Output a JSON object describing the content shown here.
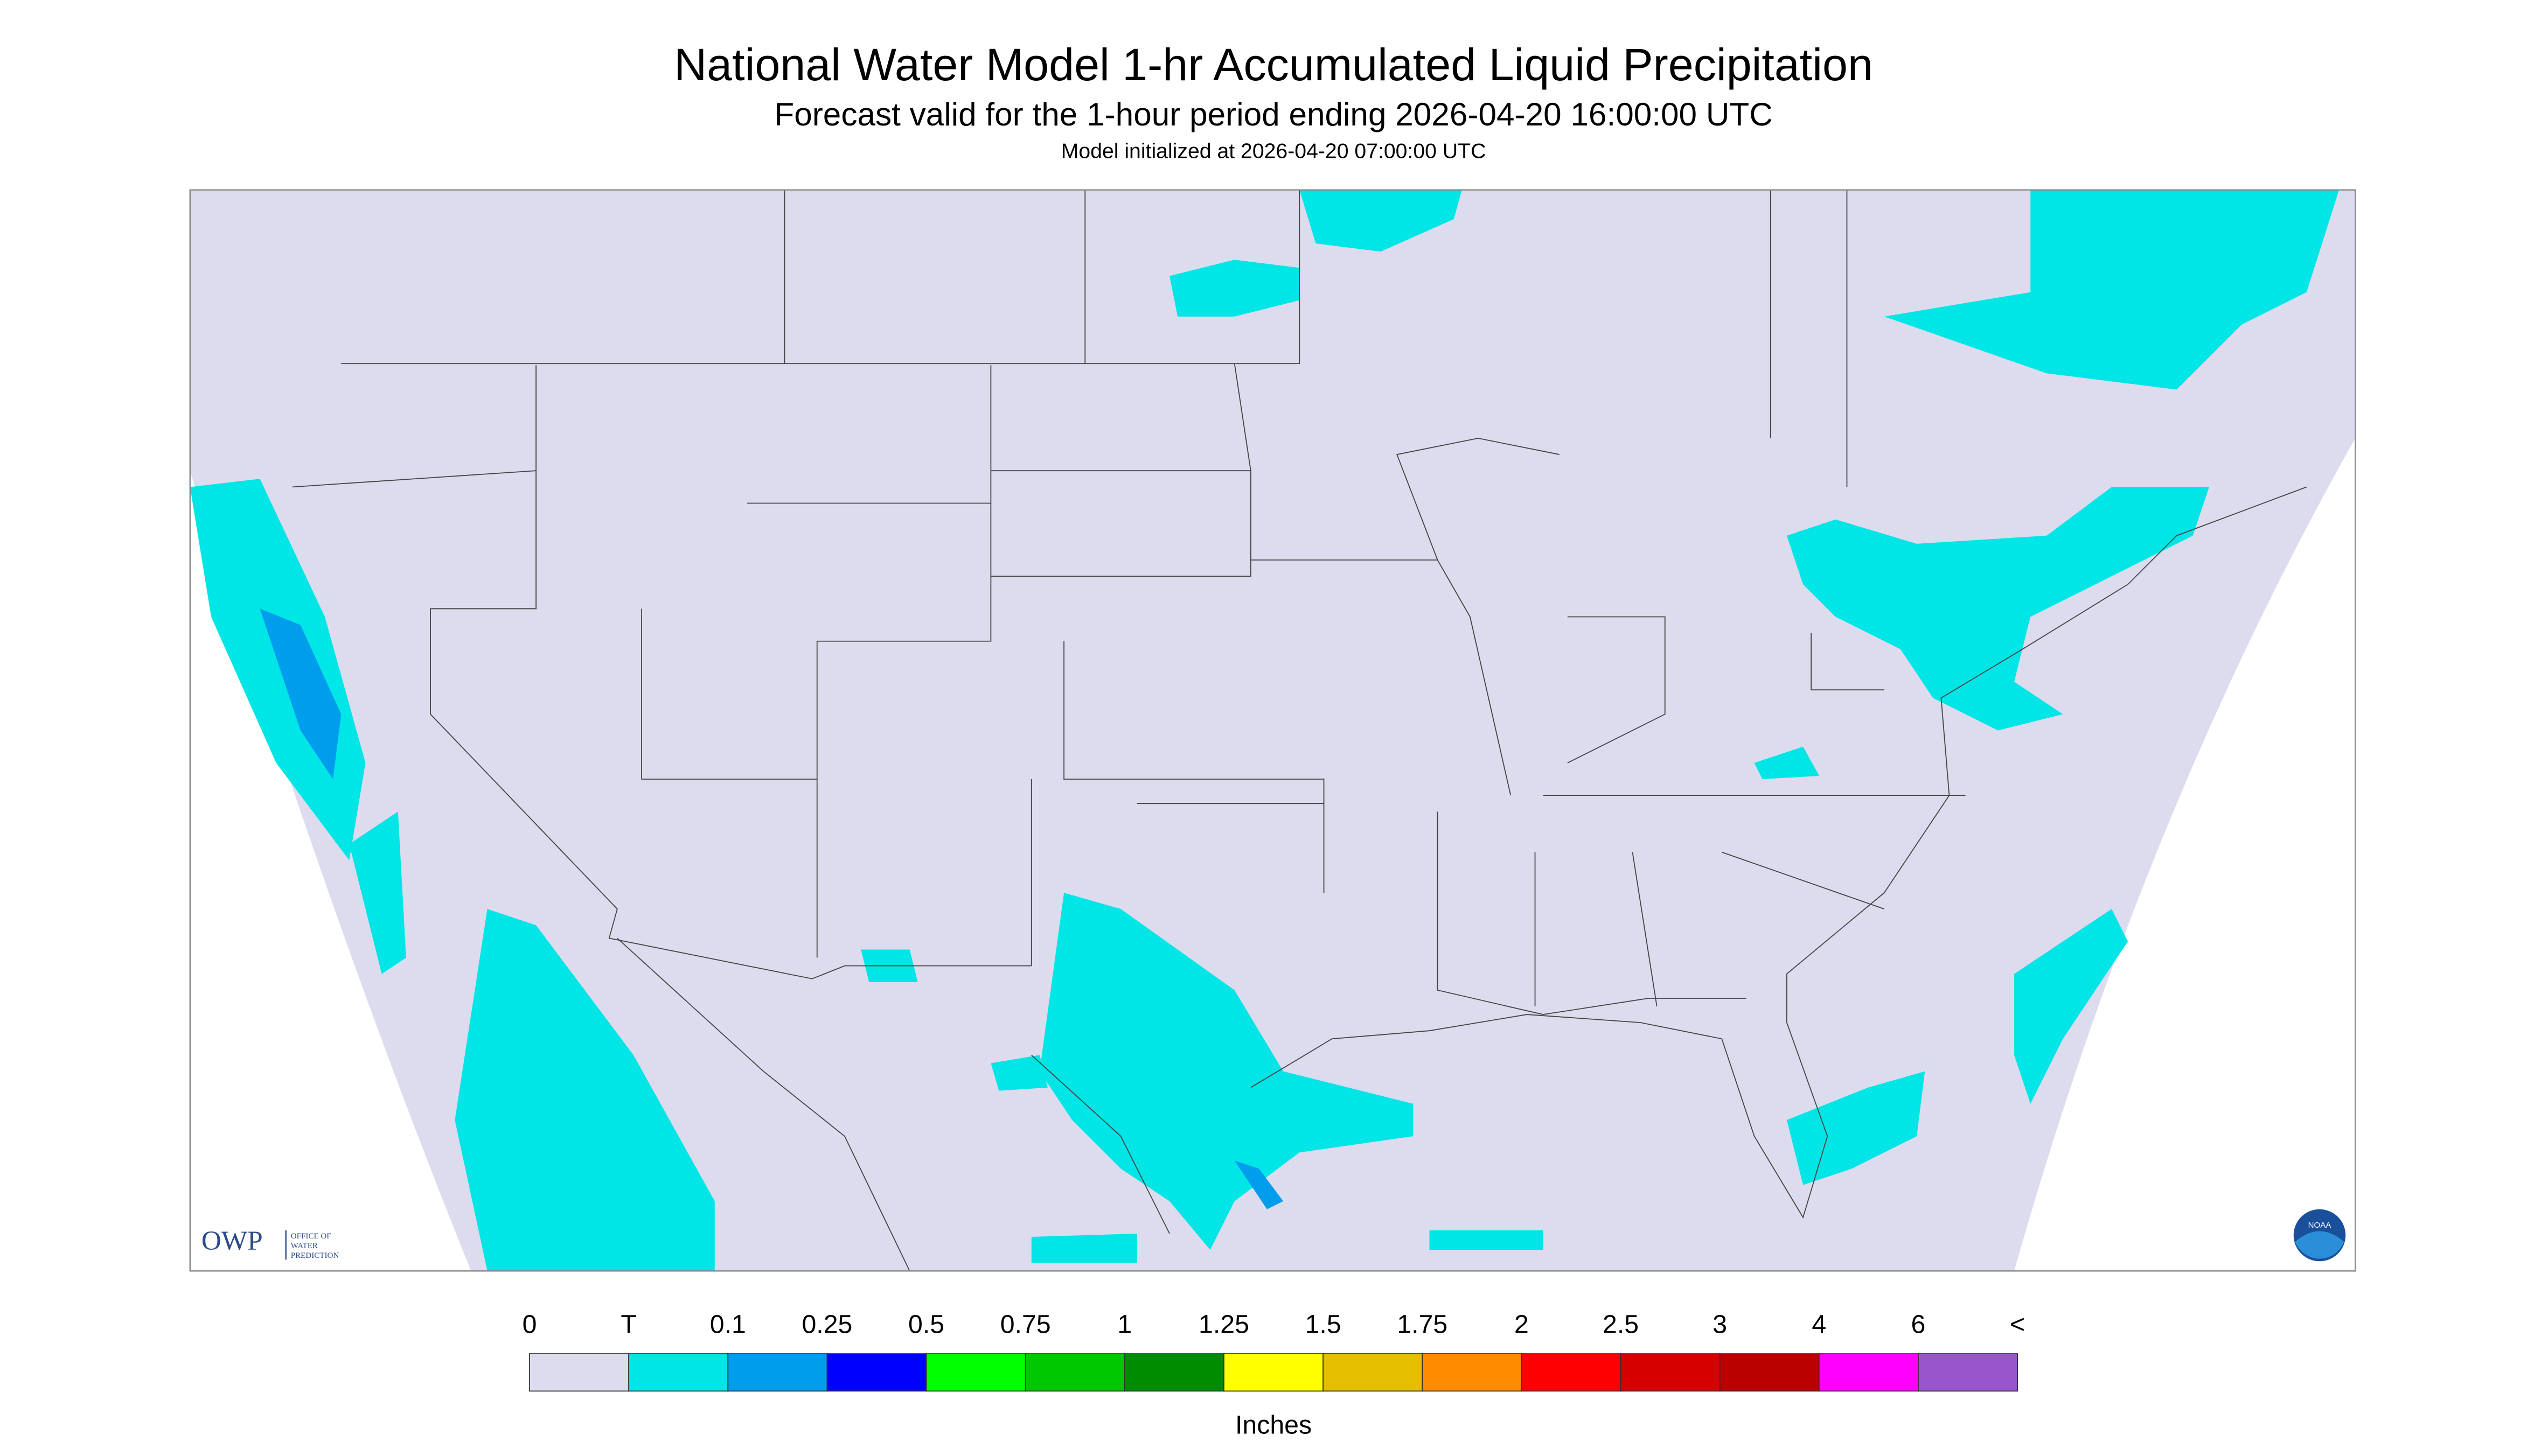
{
  "header": {
    "title": "National Water Model 1-hr Accumulated Liquid Precipitation",
    "subtitle": "Forecast valid for the 1-hour period ending 2026-04-20 16:00:00 UTC",
    "init": "Model initialized at 2026-04-20 07:00:00 UTC"
  },
  "logo": {
    "owp": "OWP",
    "owp_name": [
      "OFFICE OF",
      "WATER",
      "PREDICTION"
    ],
    "noaa": "NOAA"
  },
  "legend": {
    "labels": [
      "0",
      "T",
      "0.1",
      "0.25",
      "0.5",
      "0.75",
      "1",
      "1.25",
      "1.5",
      "1.75",
      "2",
      "2.5",
      "3",
      "4",
      "6",
      "<"
    ],
    "colors": [
      "#dcdcee",
      "#00e5e5",
      "#009ded",
      "#0000ff",
      "#00ff00",
      "#00c800",
      "#008c00",
      "#ffff00",
      "#e5be00",
      "#ff8c00",
      "#ff0000",
      "#d70000",
      "#bb0000",
      "#ff00ff",
      "#9955cc"
    ],
    "units": "Inches"
  }
}
